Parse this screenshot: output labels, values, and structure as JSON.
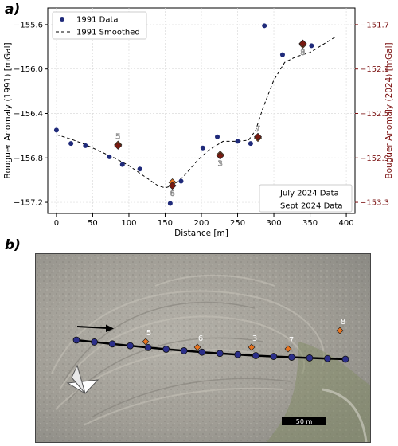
{
  "panels": {
    "a": "a)",
    "b": "b)"
  },
  "chart_data": {
    "type": "scatter",
    "xlabel": "Distance [m]",
    "ylabel_left": "Bouguer Anomaly (1991) [mGal]",
    "ylabel_right": "Bouguer Anomaly (2024) [mGal]",
    "xlim": [
      -12,
      412
    ],
    "ylim_left": [
      -157.3,
      -155.45
    ],
    "ylim_right": [
      -153.4,
      -151.55
    ],
    "xticks": [
      0,
      50,
      100,
      150,
      200,
      250,
      300,
      350,
      400
    ],
    "yticks_left": [
      -157.2,
      -156.8,
      -156.4,
      -156.0,
      -155.6
    ],
    "yticks_left_labels": [
      "−157.2",
      "−156.8",
      "−156.4",
      "−156.0",
      "−155.6"
    ],
    "yticks_right": [
      -153.3,
      -152.9,
      -152.5,
      -152.1,
      -151.7
    ],
    "yticks_right_labels": [
      "−153.3",
      "−152.9",
      "−152.5",
      "−152.1",
      "−151.7"
    ],
    "grid": true,
    "colors": {
      "data1991": "#1f2a7a",
      "july": "#e8731f",
      "sept": "#7a1a10",
      "right_axis": "#7a1010"
    },
    "series": [
      {
        "name": "1991 Data",
        "marker": "circle",
        "x": [
          0,
          20,
          40,
          73,
          91,
          115,
          157,
          172,
          202,
          222,
          250,
          268,
          287,
          312,
          352
        ],
        "y": [
          -156.55,
          -156.67,
          -156.69,
          -156.79,
          -156.86,
          -156.9,
          -157.21,
          -157.01,
          -156.71,
          -156.61,
          -156.65,
          -156.67,
          -155.61,
          -155.87,
          -155.79
        ]
      },
      {
        "name": "1991 Smoothed",
        "marker": "dashed-line",
        "x": [
          0,
          20,
          40,
          60,
          80,
          100,
          120,
          140,
          150,
          160,
          175,
          195,
          210,
          230,
          250,
          265,
          275,
          285,
          300,
          315,
          330,
          350,
          370,
          385
        ],
        "y": [
          -156.59,
          -156.63,
          -156.68,
          -156.74,
          -156.8,
          -156.87,
          -156.96,
          -157.05,
          -157.07,
          -157.05,
          -156.97,
          -156.82,
          -156.73,
          -156.65,
          -156.65,
          -156.64,
          -156.55,
          -156.35,
          -156.1,
          -155.94,
          -155.89,
          -155.85,
          -155.77,
          -155.71
        ]
      },
      {
        "name": "July 2024 Data",
        "marker": "diamond",
        "axis": "right",
        "x": [
          85,
          160,
          226,
          278,
          340
        ],
        "y": [
          -152.78,
          -153.12,
          -152.87,
          -152.72,
          -151.88
        ],
        "labels": [
          "5",
          "6",
          "3",
          "7",
          "8"
        ]
      },
      {
        "name": "Sept 2024 Data",
        "marker": "diamond",
        "axis": "right",
        "x": [
          85,
          160,
          226,
          278,
          340
        ],
        "y": [
          -152.79,
          -153.15,
          -152.88,
          -152.71,
          -151.87
        ]
      }
    ]
  },
  "photo": {
    "arrow_label": "",
    "scale_label": "50 m",
    "profile_point_count": 16,
    "station_labels": [
      "5",
      "6",
      "3",
      "7",
      "8"
    ]
  }
}
